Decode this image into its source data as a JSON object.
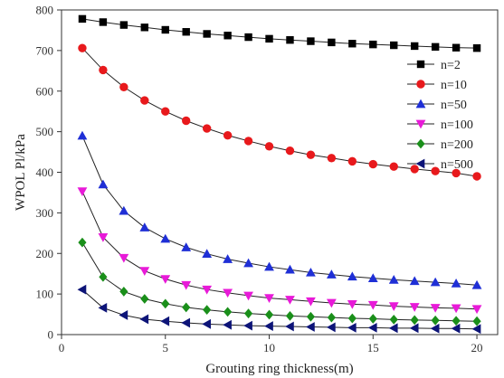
{
  "chart_data": {
    "type": "line",
    "title": "",
    "xlabel": "Grouting ring thickness(m)",
    "ylabel": "WPOL Pl/kPa",
    "xlim": [
      0,
      21
    ],
    "ylim": [
      0,
      800
    ],
    "xticks": [
      0,
      5,
      10,
      15,
      20
    ],
    "yticks": [
      0,
      100,
      200,
      300,
      400,
      500,
      600,
      700,
      800
    ],
    "grid": false,
    "legend": "right",
    "x": [
      1,
      2,
      3,
      4,
      5,
      6,
      7,
      8,
      9,
      10,
      11,
      12,
      13,
      14,
      15,
      16,
      17,
      18,
      19,
      20
    ],
    "series": [
      {
        "name": "n=2",
        "marker": "square",
        "color": "#000000",
        "values": [
          778,
          770,
          763,
          757,
          751,
          746,
          741,
          737,
          733,
          729,
          726,
          723,
          720,
          717,
          715,
          713,
          711,
          709,
          707,
          706
        ]
      },
      {
        "name": "n=10",
        "marker": "circle",
        "color": "#e8191c",
        "values": [
          706,
          652,
          610,
          577,
          550,
          527,
          508,
          491,
          477,
          464,
          453,
          443,
          435,
          427,
          420,
          414,
          408,
          403,
          398,
          390
        ]
      },
      {
        "name": "n=50",
        "marker": "triangle-up",
        "color": "#1f2fd6",
        "values": [
          490,
          370,
          305,
          264,
          236,
          215,
          199,
          186,
          176,
          167,
          160,
          153,
          148,
          143,
          139,
          135,
          132,
          129,
          126,
          122
        ]
      },
      {
        "name": "n=100",
        "marker": "triangle-down",
        "color": "#e81ad8",
        "values": [
          353,
          240,
          189,
          157,
          137,
          122,
          111,
          103,
          96,
          90,
          86,
          82,
          78,
          75,
          73,
          70,
          68,
          66,
          65,
          63
        ]
      },
      {
        "name": "n=200",
        "marker": "diamond",
        "color": "#1a8f1a",
        "values": [
          227,
          142,
          106,
          88,
          76,
          67,
          61,
          56,
          52,
          49,
          46,
          44,
          42,
          40,
          39,
          37,
          36,
          35,
          34,
          33
        ]
      },
      {
        "name": "n=500",
        "marker": "triangle-left",
        "color": "#0d1478",
        "values": [
          111,
          66,
          48,
          38,
          33,
          29,
          26,
          24,
          22,
          21,
          20,
          19,
          18,
          17,
          17,
          16,
          16,
          15,
          15,
          14
        ]
      }
    ]
  }
}
